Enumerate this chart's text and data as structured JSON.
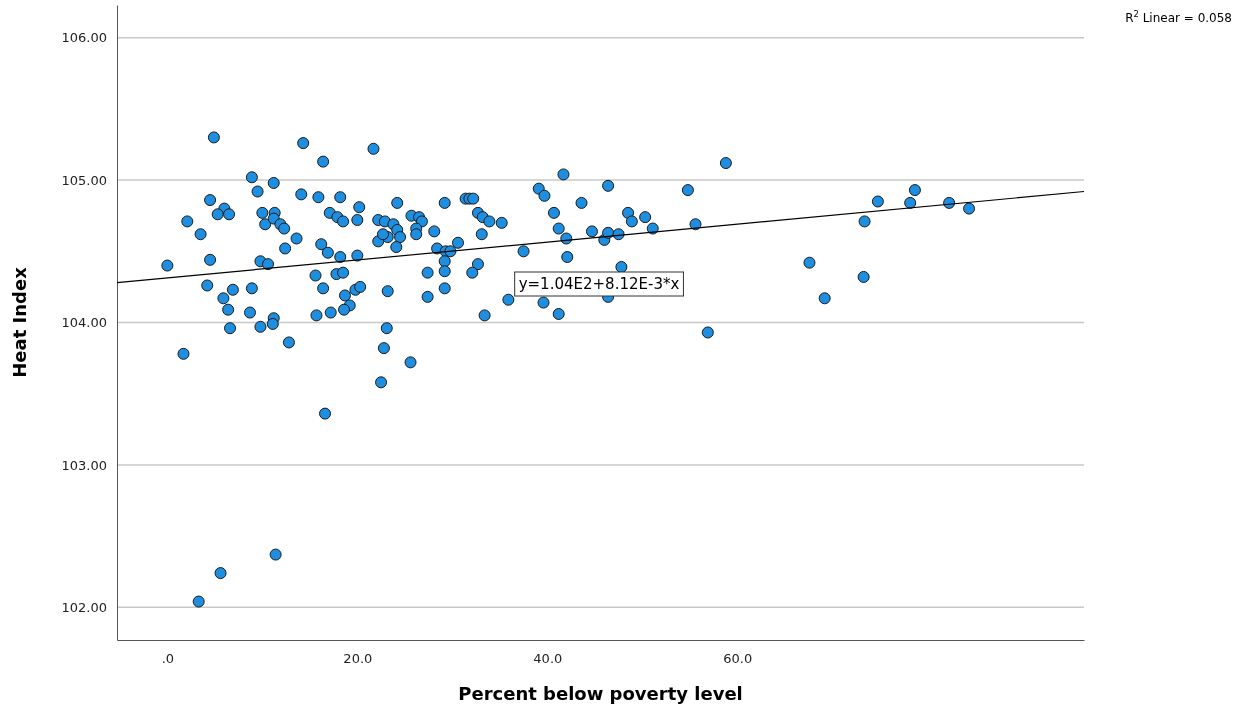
{
  "chart_data": {
    "type": "scatter",
    "xlabel": "Percent below poverty level",
    "ylabel": "Heat Index",
    "xlim": [
      -5.3,
      96.5
    ],
    "ylim": [
      101.77,
      106.23
    ],
    "xticks": [
      {
        "value": 0,
        "label": ".0"
      },
      {
        "value": 20,
        "label": "20.0"
      },
      {
        "value": 40,
        "label": "40.0"
      },
      {
        "value": 60,
        "label": "60.0"
      }
    ],
    "yticks": [
      {
        "value": 102,
        "label": "102.00"
      },
      {
        "value": 103,
        "label": "103.00"
      },
      {
        "value": 104,
        "label": "104.00"
      },
      {
        "value": 105,
        "label": "105.00"
      },
      {
        "value": 106,
        "label": "106.00"
      }
    ],
    "grid": "y",
    "annotations": [
      "R$^{2}$ Linear = 0.058",
      "y=1.04E2+8.12E-3*x"
    ],
    "series": [
      {
        "marker": "circle",
        "color": "#1e8ee0",
        "x": [
          4.9,
          14.3,
          16.4,
          8.9,
          11.2,
          9.5,
          14.1,
          15.9,
          18.2,
          4.5,
          6.0,
          5.3,
          6.5,
          10.0,
          11.3,
          2.1,
          10.3,
          11.2,
          11.9,
          12.3,
          17.1,
          17.9,
          3.5,
          13.6,
          12.4,
          16.2,
          16.9,
          0.0,
          4.5,
          9.8,
          10.6,
          18.2,
          15.6,
          17.8,
          4.2,
          5.9,
          6.9,
          8.9,
          16.4,
          6.4,
          8.7,
          11.2,
          11.1,
          9.8,
          15.7,
          17.2,
          6.6,
          12.8,
          1.7,
          21.7,
          20.2,
          24.2,
          29.2,
          31.4,
          31.8,
          32.2,
          18.5,
          20.0,
          22.2,
          22.9,
          23.8,
          24.2,
          24.5,
          25.7,
          26.5,
          26.8,
          26.2,
          26.2,
          28.1,
          23.2,
          22.2,
          22.7,
          24.1,
          32.7,
          33.2,
          33.9,
          35.2,
          33.1,
          28.4,
          30.6,
          29.3,
          29.8,
          37.5,
          20.0,
          18.5,
          29.2,
          29.2,
          32.7,
          32.1,
          27.4,
          18.7,
          19.8,
          20.3,
          23.2,
          27.4,
          29.2,
          35.9,
          19.2,
          18.6,
          33.4,
          23.1,
          22.8,
          25.6,
          22.5,
          41.7,
          39.1,
          39.7,
          46.4,
          43.6,
          40.7,
          41.2,
          42.0,
          42.1,
          44.7,
          46.0,
          46.4,
          47.5,
          48.5,
          48.9,
          50.3,
          51.1,
          54.8,
          55.6,
          58.8,
          56.9,
          39.6,
          41.2,
          46.4,
          47.8,
          74.8,
          78.7,
          78.2,
          82.3,
          84.4,
          73.4,
          67.6,
          69.2,
          73.3,
          16.6,
          11.4,
          5.6,
          3.3
        ],
        "values": [
          105.3,
          105.26,
          105.13,
          105.02,
          104.98,
          104.92,
          104.9,
          104.88,
          104.88,
          104.86,
          104.8,
          104.76,
          104.76,
          104.77,
          104.77,
          104.71,
          104.69,
          104.73,
          104.69,
          104.66,
          104.77,
          104.74,
          104.62,
          104.59,
          104.52,
          104.55,
          104.49,
          104.4,
          104.44,
          104.43,
          104.41,
          104.46,
          104.33,
          104.34,
          104.26,
          104.17,
          104.23,
          104.24,
          104.24,
          104.09,
          104.07,
          104.03,
          103.99,
          103.97,
          104.05,
          104.07,
          103.96,
          103.86,
          103.78,
          105.22,
          104.81,
          104.84,
          104.84,
          104.87,
          104.87,
          104.87,
          104.71,
          104.72,
          104.72,
          104.71,
          104.69,
          104.65,
          104.6,
          104.75,
          104.74,
          104.71,
          104.66,
          104.62,
          104.64,
          104.6,
          104.57,
          104.62,
          104.53,
          104.77,
          104.74,
          104.71,
          104.7,
          104.62,
          104.52,
          104.56,
          104.5,
          104.5,
          104.5,
          104.47,
          104.35,
          104.43,
          104.36,
          104.41,
          104.35,
          104.35,
          104.19,
          104.23,
          104.25,
          104.22,
          104.18,
          104.24,
          104.16,
          104.12,
          104.09,
          104.05,
          103.96,
          103.82,
          103.72,
          103.58,
          105.04,
          104.94,
          104.89,
          104.96,
          104.84,
          104.77,
          104.66,
          104.59,
          104.46,
          104.64,
          104.58,
          104.63,
          104.62,
          104.77,
          104.71,
          104.74,
          104.66,
          104.93,
          104.69,
          105.12,
          103.93,
          104.14,
          104.06,
          104.18,
          104.39,
          104.85,
          104.93,
          104.84,
          104.84,
          104.8,
          104.71,
          104.42,
          104.17,
          104.32,
          103.36,
          102.37,
          102.24,
          102.04
        ]
      },
      {
        "type": "line",
        "color": "#000000",
        "x": [
          -5.3,
          96.5
        ],
        "values": [
          104.28,
          104.92
        ]
      }
    ]
  }
}
